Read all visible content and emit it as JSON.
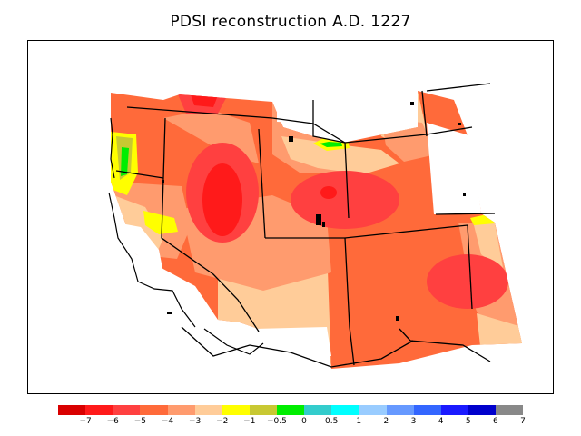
{
  "title": "PDSI reconstruction A.D. 1227",
  "legend": {
    "colors": [
      "#d90000",
      "#ff1a1a",
      "#ff4040",
      "#ff6a3a",
      "#ff9b6e",
      "#ffcc99",
      "#ffff00",
      "#c8c832",
      "#00ee00",
      "#33cccc",
      "#00ffff",
      "#99ccff",
      "#6699ff",
      "#3366ff",
      "#1a1aff",
      "#0000cc",
      "#888888"
    ],
    "ticks": [
      "−7",
      "−6",
      "−5",
      "−4",
      "−3",
      "−2",
      "−1",
      "−0.5",
      "0",
      "0.5",
      "1",
      "2",
      "3",
      "4",
      "5",
      "6",
      "7"
    ]
  },
  "map": {
    "region": "Western United States",
    "colors": {
      "severe": "#ff1a1a",
      "strong": "#ff4040",
      "moderate": "#ff6a3a",
      "mild": "#ff9b6e",
      "light": "#ffcc99",
      "near_normal": "#ffff00",
      "slightly_dry": "#c8c832",
      "normal": "#00ee00",
      "boundary": "#000000"
    }
  }
}
